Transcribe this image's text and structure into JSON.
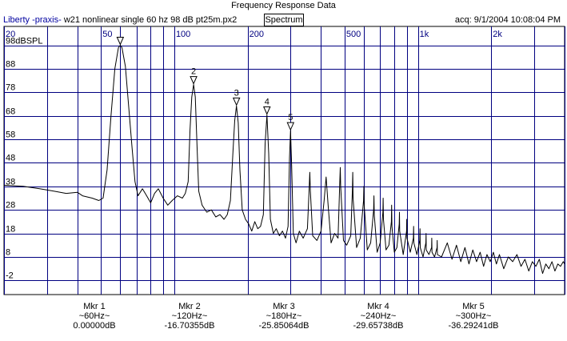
{
  "window": {
    "title": "Frequency Response Data"
  },
  "header": {
    "app_name": "Liberty -praxis-",
    "file_desc": "w21 nonlinear single 60 hz 98 dB pt25m.px2",
    "view_button": "Spectrum",
    "acq_label": "acq: 9/1/2004 10:08:04 PM"
  },
  "colors": {
    "grid": "#000080",
    "trace": "#000000",
    "frame": "#000000"
  },
  "chart_data": {
    "type": "line",
    "title": "Frequency Response Data",
    "x_scale": "log",
    "xlim": [
      20,
      4000
    ],
    "ylim": [
      -8,
      106
    ],
    "x_ticks": [
      {
        "v": 20,
        "label": "20"
      },
      {
        "v": 50,
        "label": "50"
      },
      {
        "v": 100,
        "label": "100"
      },
      {
        "v": 200,
        "label": "200"
      },
      {
        "v": 500,
        "label": "500"
      },
      {
        "v": 1000,
        "label": "1k"
      },
      {
        "v": 2000,
        "label": "2k"
      }
    ],
    "x_grid": [
      20,
      30,
      40,
      50,
      60,
      70,
      80,
      90,
      100,
      200,
      300,
      400,
      500,
      600,
      700,
      800,
      900,
      1000,
      2000,
      3000,
      4000
    ],
    "y_ticks": [
      98,
      88,
      78,
      68,
      58,
      48,
      38,
      28,
      18,
      8,
      -2
    ],
    "y_tick_labels": [
      "98dBSPL",
      "88",
      "78",
      "68",
      "58",
      "48",
      "38",
      "28",
      "18",
      "8",
      "-2"
    ],
    "series": [
      {
        "name": "Spectrum",
        "points": [
          [
            20,
            38.5
          ],
          [
            24,
            38
          ],
          [
            28,
            37
          ],
          [
            32,
            36
          ],
          [
            36,
            35
          ],
          [
            40,
            35.5
          ],
          [
            42,
            34
          ],
          [
            46,
            33
          ],
          [
            49,
            32
          ],
          [
            51,
            33
          ],
          [
            53,
            45
          ],
          [
            55,
            68
          ],
          [
            57,
            88
          ],
          [
            59,
            97
          ],
          [
            60,
            98
          ],
          [
            61,
            97
          ],
          [
            63,
            89
          ],
          [
            65,
            72
          ],
          [
            67,
            55
          ],
          [
            69,
            40
          ],
          [
            71,
            34
          ],
          [
            74,
            37
          ],
          [
            77,
            34
          ],
          [
            80,
            31
          ],
          [
            83,
            35
          ],
          [
            86,
            37
          ],
          [
            90,
            33
          ],
          [
            94,
            30
          ],
          [
            98,
            32
          ],
          [
            103,
            34
          ],
          [
            108,
            33
          ],
          [
            111,
            35
          ],
          [
            114,
            40
          ],
          [
            116,
            62
          ],
          [
            118,
            76
          ],
          [
            120,
            81.3
          ],
          [
            122,
            76
          ],
          [
            124,
            55
          ],
          [
            126,
            36
          ],
          [
            130,
            30
          ],
          [
            136,
            27
          ],
          [
            142,
            28
          ],
          [
            148,
            25
          ],
          [
            154,
            26
          ],
          [
            160,
            24
          ],
          [
            165,
            26
          ],
          [
            170,
            32
          ],
          [
            174,
            52
          ],
          [
            177,
            66
          ],
          [
            180,
            72.2
          ],
          [
            183,
            65
          ],
          [
            186,
            45
          ],
          [
            190,
            28
          ],
          [
            196,
            24
          ],
          [
            202,
            22
          ],
          [
            208,
            19
          ],
          [
            214,
            23
          ],
          [
            220,
            20
          ],
          [
            226,
            21
          ],
          [
            232,
            26
          ],
          [
            236,
            56
          ],
          [
            240,
            68.4
          ],
          [
            244,
            52
          ],
          [
            248,
            24
          ],
          [
            255,
            18
          ],
          [
            262,
            20
          ],
          [
            270,
            17
          ],
          [
            278,
            19
          ],
          [
            286,
            16
          ],
          [
            293,
            21
          ],
          [
            297,
            50
          ],
          [
            300,
            61.7
          ],
          [
            303,
            48
          ],
          [
            308,
            18
          ],
          [
            316,
            14
          ],
          [
            326,
            19
          ],
          [
            338,
            16
          ],
          [
            352,
            20
          ],
          [
            358,
            38
          ],
          [
            360,
            44
          ],
          [
            362,
            36
          ],
          [
            370,
            17
          ],
          [
            385,
            15
          ],
          [
            400,
            19
          ],
          [
            412,
            32
          ],
          [
            420,
            42
          ],
          [
            428,
            30
          ],
          [
            440,
            14
          ],
          [
            455,
            18
          ],
          [
            470,
            16
          ],
          [
            478,
            40
          ],
          [
            480,
            46
          ],
          [
            482,
            38
          ],
          [
            495,
            15
          ],
          [
            510,
            13
          ],
          [
            530,
            17
          ],
          [
            538,
            36
          ],
          [
            540,
            44
          ],
          [
            542,
            33
          ],
          [
            560,
            12
          ],
          [
            580,
            16
          ],
          [
            598,
            32
          ],
          [
            600,
            38
          ],
          [
            602,
            30
          ],
          [
            620,
            11
          ],
          [
            640,
            14
          ],
          [
            658,
            28
          ],
          [
            660,
            34
          ],
          [
            662,
            26
          ],
          [
            680,
            10
          ],
          [
            700,
            14
          ],
          [
            718,
            27
          ],
          [
            720,
            33
          ],
          [
            722,
            24
          ],
          [
            740,
            11
          ],
          [
            760,
            13
          ],
          [
            778,
            23
          ],
          [
            780,
            30
          ],
          [
            782,
            21
          ],
          [
            800,
            10
          ],
          [
            820,
            12
          ],
          [
            838,
            22
          ],
          [
            840,
            27
          ],
          [
            842,
            19
          ],
          [
            870,
            9
          ],
          [
            898,
            19
          ],
          [
            900,
            24
          ],
          [
            902,
            16
          ],
          [
            930,
            10
          ],
          [
            958,
            16
          ],
          [
            960,
            21
          ],
          [
            962,
            14
          ],
          [
            990,
            9
          ],
          [
            1018,
            15
          ],
          [
            1020,
            20
          ],
          [
            1022,
            12
          ],
          [
            1050,
            8
          ],
          [
            1078,
            14
          ],
          [
            1080,
            18
          ],
          [
            1082,
            11
          ],
          [
            1110,
            9
          ],
          [
            1138,
            12
          ],
          [
            1140,
            16
          ],
          [
            1142,
            10
          ],
          [
            1170,
            8
          ],
          [
            1198,
            12
          ],
          [
            1200,
            15
          ],
          [
            1202,
            9
          ],
          [
            1250,
            8
          ],
          [
            1320,
            14
          ],
          [
            1380,
            7
          ],
          [
            1440,
            13
          ],
          [
            1500,
            6
          ],
          [
            1560,
            12
          ],
          [
            1620,
            5
          ],
          [
            1680,
            11
          ],
          [
            1740,
            6
          ],
          [
            1800,
            10
          ],
          [
            1860,
            4
          ],
          [
            1920,
            9
          ],
          [
            1980,
            6
          ],
          [
            2040,
            10
          ],
          [
            2100,
            5
          ],
          [
            2160,
            9
          ],
          [
            2250,
            3
          ],
          [
            2350,
            8
          ],
          [
            2450,
            6
          ],
          [
            2550,
            9
          ],
          [
            2650,
            4
          ],
          [
            2750,
            7
          ],
          [
            2850,
            2
          ],
          [
            2950,
            6
          ],
          [
            3050,
            4
          ],
          [
            3150,
            7
          ],
          [
            3250,
            1
          ],
          [
            3350,
            5
          ],
          [
            3450,
            3
          ],
          [
            3550,
            6
          ],
          [
            3650,
            2
          ],
          [
            3750,
            5
          ],
          [
            3850,
            4
          ],
          [
            3950,
            6
          ],
          [
            4000,
            5
          ]
        ]
      }
    ],
    "markers": [
      {
        "id": "1",
        "freq": 60,
        "level": 98.0,
        "show_number": false
      },
      {
        "id": "2",
        "freq": 120,
        "level": 81.3,
        "show_number": true
      },
      {
        "id": "3",
        "freq": 180,
        "level": 72.2,
        "show_number": true
      },
      {
        "id": "4",
        "freq": 240,
        "level": 68.4,
        "show_number": true
      },
      {
        "id": "5",
        "freq": 300,
        "level": 61.7,
        "show_number": true
      }
    ]
  },
  "markers_readout": [
    {
      "label": "Mkr 1",
      "freq": "~60Hz~",
      "value": "0.00000dB"
    },
    {
      "label": "Mkr 2",
      "freq": "~120Hz~",
      "value": "-16.70355dB"
    },
    {
      "label": "Mkr 3",
      "freq": "~180Hz~",
      "value": "-25.85064dB"
    },
    {
      "label": "Mkr 4",
      "freq": "~240Hz~",
      "value": "-29.65738dB"
    },
    {
      "label": "Mkr 5",
      "freq": "~300Hz~",
      "value": "-36.29241dB"
    }
  ]
}
